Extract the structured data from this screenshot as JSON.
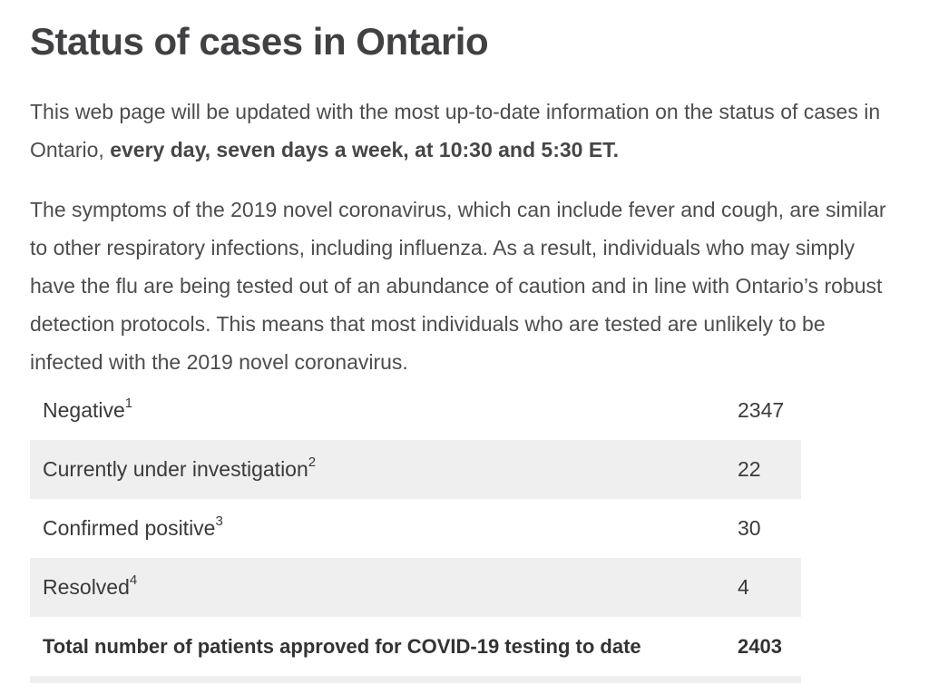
{
  "page": {
    "title": "Status of cases in Ontario"
  },
  "intro": {
    "text_regular": "This web page will be updated with the most up-to-date information on the status of cases in Ontario, ",
    "text_bold": "every day, seven days a week, at 10:30 and 5:30 ET."
  },
  "symptoms_paragraph": "The symptoms of the 2019 novel coronavirus, which can include fever and cough, are similar to other respiratory infections, including influenza. As a result, individuals who may simply have the flu are being tested out of an abundance of caution and in line with Ontario’s robust detection protocols. This means that most individuals who are tested are unlikely to be infected with the 2019 novel coronavirus.",
  "status_table": {
    "rows": [
      {
        "label": "Negative",
        "footnote": "1",
        "value": "2347"
      },
      {
        "label": "Currently under investigation",
        "footnote": "2",
        "value": "22"
      },
      {
        "label": "Confirmed positive",
        "footnote": "3",
        "value": "30"
      },
      {
        "label": "Resolved",
        "footnote": "4",
        "value": "4"
      }
    ],
    "total": {
      "label": "Total number of patients approved for COVID-19 testing to date",
      "value": "2403"
    }
  },
  "colors": {
    "heading": "#414042",
    "body_text": "#4d4d4d",
    "table_text": "#3a3a3a",
    "row_shade": "#efefef",
    "background": "#ffffff"
  }
}
